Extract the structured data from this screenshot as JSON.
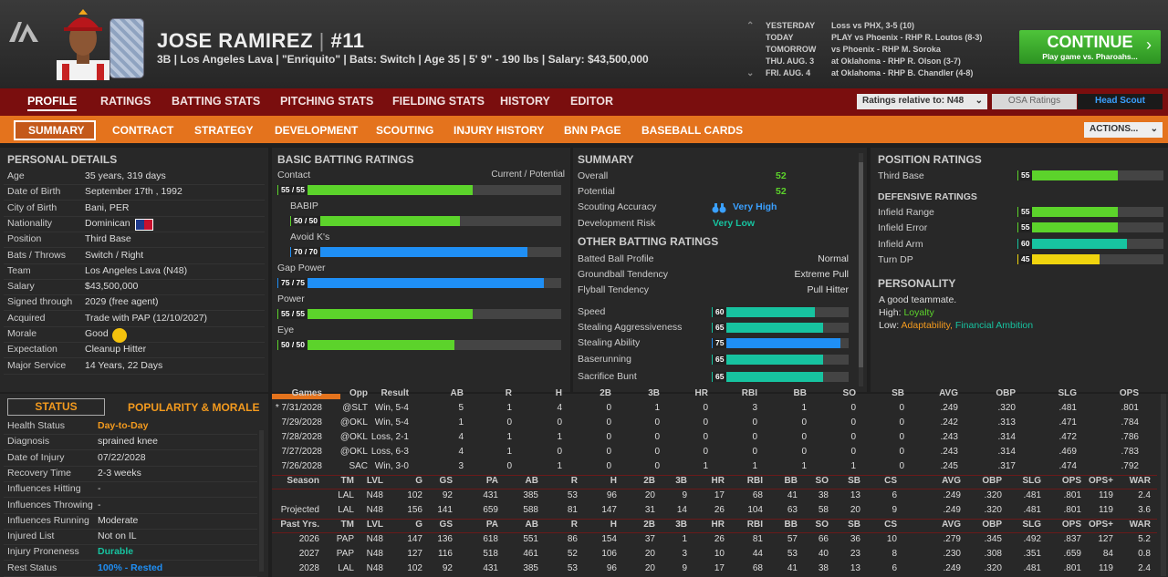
{
  "header": {
    "player_name": "JOSE RAMIREZ",
    "number": "#11",
    "info": "3B | Los Angeles Lava  |  \"Enriquito\" | Bats: Switch  | Age 35  |  5' 9\"  - 190 lbs  |  Salary: $43,500,000"
  },
  "schedule": [
    {
      "day": "YESTERDAY",
      "event": "Loss vs PHX, 3-5 (10)"
    },
    {
      "day": "TODAY",
      "event": "PLAY vs Phoenix - RHP R. Loutos (8-3)"
    },
    {
      "day": "TOMORROW",
      "event": "vs Phoenix - RHP M. Soroka"
    },
    {
      "day": "THU. AUG. 3",
      "event": "at Oklahoma - RHP R. Olson (3-7)"
    },
    {
      "day": "FRI. AUG. 4",
      "event": "at Oklahoma - RHP B. Chandler (4-8)"
    }
  ],
  "continue": {
    "label": "CONTINUE",
    "sub": "Play game vs. Pharoahs...",
    "chevron": "›"
  },
  "main_tabs": [
    "PROFILE",
    "RATINGS",
    "BATTING STATS",
    "PITCHING STATS",
    "FIELDING STATS",
    "HISTORY",
    "EDITOR"
  ],
  "ratings_relative": "Ratings relative to: N48",
  "osa": "OSA Ratings",
  "head_scout": "Head Scout",
  "sub_tabs": [
    "SUMMARY",
    "CONTRACT",
    "STRATEGY",
    "DEVELOPMENT",
    "SCOUTING",
    "INJURY HISTORY",
    "BNN PAGE",
    "BASEBALL CARDS"
  ],
  "actions": "ACTIONS...",
  "personal": {
    "title": "PERSONAL DETAILS",
    "rows": [
      [
        "Age",
        "35 years, 319 days"
      ],
      [
        "Date of Birth",
        "September 17th , 1992"
      ],
      [
        "City of Birth",
        "Bani, PER"
      ],
      [
        "Nationality",
        "Dominican"
      ],
      [
        "Position",
        "Third Base"
      ],
      [
        "Bats / Throws",
        "Switch / Right"
      ],
      [
        "Team",
        "Los Angeles Lava (N48)"
      ],
      [
        "Salary",
        "$43,500,000"
      ],
      [
        "Signed through",
        "2029 (free agent)"
      ],
      [
        "Acquired",
        "Trade with PAP (12/10/2027)"
      ],
      [
        "Morale",
        "Good"
      ],
      [
        "Expectation",
        "Cleanup Hitter"
      ],
      [
        "Major Service",
        "14 Years, 22 Days"
      ]
    ]
  },
  "batting": {
    "title": "BASIC BATTING RATINGS",
    "legend": "Current / Potential",
    "bars": [
      {
        "name": "Contact",
        "label": "55 / 55",
        "value": 55,
        "color": "g"
      },
      {
        "name": "BABIP",
        "label": "50 / 50",
        "value": 50,
        "color": "g"
      },
      {
        "name": "Avoid K's",
        "label": "70 / 70",
        "value": 70,
        "color": "b"
      },
      {
        "name": "Gap Power",
        "label": "75 / 75",
        "value": 75,
        "color": "b"
      },
      {
        "name": "Power",
        "label": "55 / 55",
        "value": 55,
        "color": "g"
      },
      {
        "name": "Eye",
        "label": "50 / 50",
        "value": 50,
        "color": "g"
      }
    ]
  },
  "summary": {
    "title": "SUMMARY",
    "overall_label": "Overall",
    "overall": "52",
    "potential_label": "Potential",
    "potential": "52",
    "scout_label": "Scouting Accuracy",
    "scout": "Very High",
    "dev_label": "Development Risk",
    "dev": "Very Low"
  },
  "other": {
    "title": "OTHER BATTING RATINGS",
    "rows": [
      [
        "Batted Ball Profile",
        "Normal"
      ],
      [
        "Groundball Tendency",
        "Extreme Pull"
      ],
      [
        "Flyball Tendency",
        "Pull Hitter"
      ]
    ],
    "bars": [
      {
        "name": "Speed",
        "value": 60,
        "color": "tl"
      },
      {
        "name": "Stealing Aggressiveness",
        "value": 65,
        "color": "tl"
      },
      {
        "name": "Stealing Ability",
        "value": 75,
        "color": "b"
      },
      {
        "name": "Baserunning",
        "value": 65,
        "color": "tl"
      },
      {
        "name": "Sacrifice Bunt",
        "value": 65,
        "color": "tl"
      }
    ]
  },
  "position": {
    "title": "POSITION RATINGS",
    "main": {
      "name": "Third Base",
      "value": 55,
      "color": "g"
    },
    "def_title": "DEFENSIVE RATINGS",
    "bars": [
      {
        "name": "Infield Range",
        "value": 55,
        "color": "g"
      },
      {
        "name": "Infield Error",
        "value": 55,
        "color": "g"
      },
      {
        "name": "Infield Arm",
        "value": 60,
        "color": "tl"
      },
      {
        "name": "Turn DP",
        "value": 45,
        "color": "y"
      }
    ]
  },
  "personality": {
    "title": "PERSONALITY",
    "line1": "A good teammate.",
    "high_label": "High:",
    "high": "Loyalty",
    "low_label": "Low:",
    "low1": "Adaptability,",
    "low2": "Financial Ambition"
  },
  "status": {
    "tab1": "STATUS",
    "tab2": "POPULARITY & MORALE",
    "rows": [
      [
        "Health Status",
        "Day-to-Day",
        "#f39a1e"
      ],
      [
        "Diagnosis",
        "sprained knee",
        ""
      ],
      [
        "Date of Injury",
        "07/22/2028",
        ""
      ],
      [
        "Recovery Time",
        "2-3 weeks",
        ""
      ],
      [
        "Influences Hitting",
        "-",
        ""
      ],
      [
        "Influences Throwing",
        "-",
        ""
      ],
      [
        "Influences Running",
        "Moderate",
        ""
      ],
      [
        "Injured List",
        "Not on IL",
        ""
      ],
      [
        "Injury Proneness",
        "Durable",
        "#17c3a0"
      ],
      [
        "Rest Status",
        "100% - Rested",
        "#1f8ff5"
      ]
    ]
  },
  "games": {
    "header": [
      "Games",
      "Opp",
      "Result",
      "AB",
      "R",
      "H",
      "2B",
      "3B",
      "HR",
      "RBI",
      "BB",
      "SO",
      "SB",
      "AVG",
      "OBP",
      "SLG",
      "OPS"
    ],
    "rows": [
      [
        "* 7/31/2028",
        "@SLT",
        "Win, 5-4",
        "5",
        "1",
        "4",
        "0",
        "1",
        "0",
        "3",
        "1",
        "0",
        "0",
        ".249",
        ".320",
        ".481",
        ".801"
      ],
      [
        "7/29/2028",
        "@OKL",
        "Win, 5-4",
        "1",
        "0",
        "0",
        "0",
        "0",
        "0",
        "0",
        "0",
        "0",
        "0",
        ".242",
        ".313",
        ".471",
        ".784"
      ],
      [
        "7/28/2028",
        "@OKL",
        "Loss, 2-1",
        "4",
        "1",
        "1",
        "0",
        "0",
        "0",
        "0",
        "0",
        "0",
        "0",
        ".243",
        ".314",
        ".472",
        ".786"
      ],
      [
        "7/27/2028",
        "@OKL",
        "Loss, 6-3",
        "4",
        "1",
        "0",
        "0",
        "0",
        "0",
        "0",
        "0",
        "0",
        "0",
        ".243",
        ".314",
        ".469",
        ".783"
      ],
      [
        "7/26/2028",
        "SAC",
        "Win, 3-0",
        "3",
        "0",
        "1",
        "0",
        "0",
        "1",
        "1",
        "1",
        "1",
        "0",
        ".245",
        ".317",
        ".474",
        ".792"
      ]
    ]
  },
  "season": {
    "header": [
      "Season",
      "TM",
      "LVL",
      "G",
      "GS",
      "PA",
      "AB",
      "R",
      "H",
      "2B",
      "3B",
      "HR",
      "RBI",
      "BB",
      "SO",
      "SB",
      "CS",
      "AVG",
      "OBP",
      "SLG",
      "OPS",
      "OPS+",
      "WAR"
    ],
    "current": [
      "",
      "LAL",
      "N48",
      "102",
      "92",
      "431",
      "385",
      "53",
      "96",
      "20",
      "9",
      "17",
      "68",
      "41",
      "38",
      "13",
      "6",
      ".249",
      ".320",
      ".481",
      ".801",
      "119",
      "2.4"
    ],
    "projected": [
      "Projected",
      "LAL",
      "N48",
      "156",
      "141",
      "659",
      "588",
      "81",
      "147",
      "31",
      "14",
      "26",
      "104",
      "63",
      "58",
      "20",
      "9",
      ".249",
      ".320",
      ".481",
      ".801",
      "119",
      "3.6"
    ]
  },
  "past": {
    "header": [
      "Past Yrs.",
      "TM",
      "LVL",
      "G",
      "GS",
      "PA",
      "AB",
      "R",
      "H",
      "2B",
      "3B",
      "HR",
      "RBI",
      "BB",
      "SO",
      "SB",
      "CS",
      "AVG",
      "OBP",
      "SLG",
      "OPS",
      "OPS+",
      "WAR"
    ],
    "rows": [
      [
        "2026",
        "PAP",
        "N48",
        "147",
        "136",
        "618",
        "551",
        "86",
        "154",
        "37",
        "1",
        "26",
        "81",
        "57",
        "66",
        "36",
        "10",
        ".279",
        ".345",
        ".492",
        ".837",
        "127",
        "5.2"
      ],
      [
        "2027",
        "PAP",
        "N48",
        "127",
        "116",
        "518",
        "461",
        "52",
        "106",
        "20",
        "3",
        "10",
        "44",
        "53",
        "40",
        "23",
        "8",
        ".230",
        ".308",
        ".351",
        ".659",
        "84",
        "0.8"
      ],
      [
        "2028",
        "LAL",
        "N48",
        "102",
        "92",
        "431",
        "385",
        "53",
        "96",
        "20",
        "9",
        "17",
        "68",
        "41",
        "38",
        "13",
        "6",
        ".249",
        ".320",
        ".481",
        ".801",
        "119",
        "2.4"
      ]
    ]
  }
}
